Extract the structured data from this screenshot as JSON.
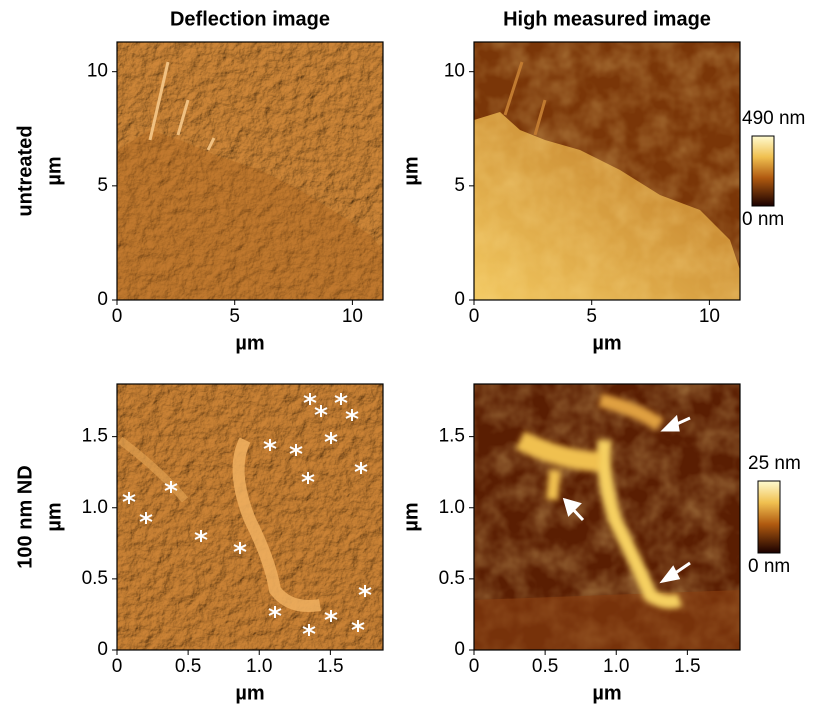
{
  "columns": [
    "Deflection image",
    "High measured image"
  ],
  "rows": [
    {
      "label": "untreated",
      "y_label": "µm",
      "x_label": "µm",
      "range": [
        0,
        11.3
      ],
      "ticks": [
        0,
        5,
        10
      ],
      "colorbar": {
        "max": "490 nm",
        "min": "0 nm"
      }
    },
    {
      "label": "100  nm ND",
      "y_label": "µm",
      "x_label": "µm",
      "range": [
        0,
        1.87
      ],
      "ticks": [
        0,
        0.5,
        {
          "value": 1,
          "label": "1.0"
        },
        1.5
      ],
      "colorbar": {
        "max": "25 nm",
        "min": "0 nm"
      }
    }
  ]
}
